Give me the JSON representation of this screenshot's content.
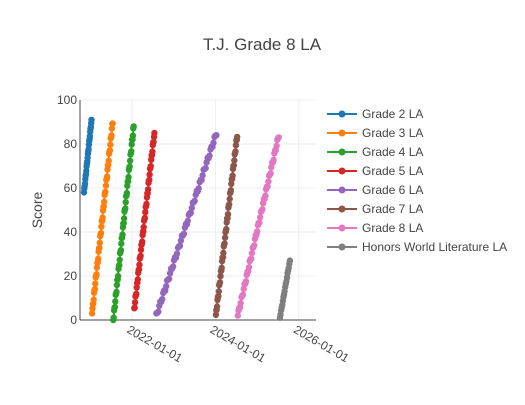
{
  "chart_data": {
    "type": "line",
    "title": "T.J. Grade 8 LA",
    "ylabel": "Score",
    "xlabel": "",
    "x_type": "date",
    "xlim": [
      "2020-10-01",
      "2026-06-01"
    ],
    "ylim": [
      0,
      100
    ],
    "x_ticks": [
      "2022-01-01",
      "2024-01-01",
      "2026-01-01"
    ],
    "y_ticks": [
      0,
      20,
      40,
      60,
      80,
      100
    ],
    "grid": true,
    "legend_position": "right",
    "series": [
      {
        "name": "Grade 2 LA",
        "color": "#1f77b4",
        "start": "2020-11-05",
        "end": "2021-01-10",
        "y_start": 58,
        "y_end": 91,
        "points": 24
      },
      {
        "name": "Grade 3 LA",
        "color": "#ff7f0e",
        "start": "2021-01-15",
        "end": "2021-07-15",
        "y_start": 3,
        "y_end": 90,
        "points": 52
      },
      {
        "name": "Grade 4 LA",
        "color": "#2ca02c",
        "start": "2021-07-20",
        "end": "2022-01-15",
        "y_start": 0,
        "y_end": 88,
        "points": 52
      },
      {
        "name": "Grade 5 LA",
        "color": "#d62728",
        "start": "2022-01-20",
        "end": "2022-07-15",
        "y_start": 5,
        "y_end": 85,
        "points": 52
      },
      {
        "name": "Grade 6 LA",
        "color": "#9467bd",
        "start": "2022-08-01",
        "end": "2024-01-10",
        "y_start": 2,
        "y_end": 85,
        "points": 62
      },
      {
        "name": "Grade 7 LA",
        "color": "#8c564b",
        "start": "2024-01-05",
        "end": "2024-07-10",
        "y_start": 2,
        "y_end": 84,
        "points": 52
      },
      {
        "name": "Grade 8 LA",
        "color": "#e377c2",
        "start": "2024-07-15",
        "end": "2025-07-10",
        "y_start": 2,
        "y_end": 84,
        "points": 56
      },
      {
        "name": "Honors World Literature LA",
        "color": "#7f7f7f",
        "start": "2025-07-20",
        "end": "2025-10-15",
        "y_start": 1,
        "y_end": 27,
        "points": 18
      }
    ]
  }
}
